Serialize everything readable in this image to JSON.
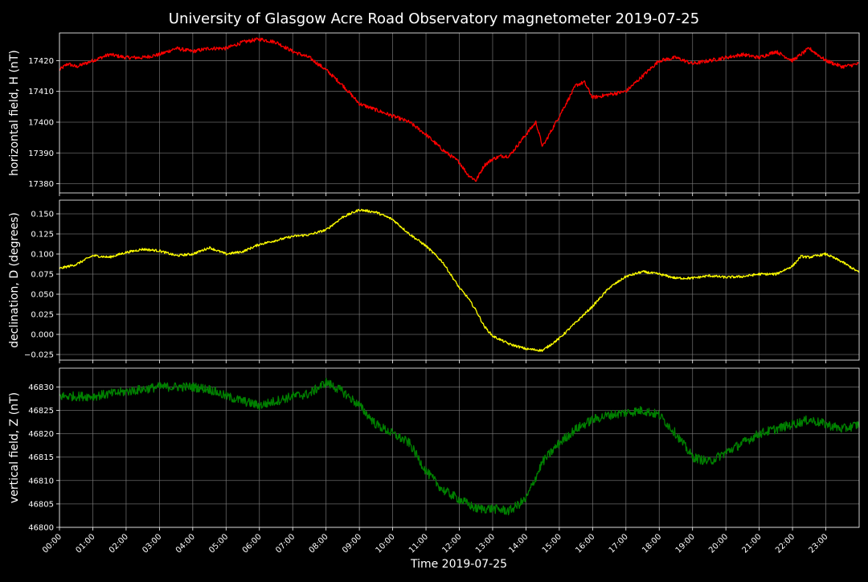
{
  "figure": {
    "title": "University of Glasgow Acre Road Observatory magnetometer 2019-07-25",
    "xlabel": "Time 2019-07-25",
    "background": "#000000",
    "foreground": "#ffffff",
    "grid_color": "#7f7f7f"
  },
  "chart_data": [
    {
      "type": "line",
      "ylabel": "horizontal field, H (nT)",
      "color": "#ff0000",
      "grid": true,
      "xlim": [
        0,
        24
      ],
      "ylim": [
        17377,
        17429
      ],
      "yticks": [
        17380,
        17390,
        17400,
        17410,
        17420
      ],
      "ytick_labels": [
        "17380",
        "17390",
        "17400",
        "17410",
        "17420"
      ],
      "noise": 0.6,
      "x": [
        0,
        0.25,
        0.5,
        1,
        1.5,
        2,
        2.5,
        3,
        3.5,
        4,
        4.5,
        5,
        5.5,
        6,
        6.5,
        7,
        7.5,
        8,
        8.5,
        9,
        9.5,
        10,
        10.5,
        11,
        11.5,
        12,
        12.25,
        12.5,
        12.75,
        13,
        13.25,
        13.5,
        14,
        14.3,
        14.5,
        14.75,
        15,
        15.5,
        15.75,
        16,
        16.5,
        17,
        17.5,
        18,
        18.5,
        19,
        19.5,
        20,
        20.5,
        21,
        21.5,
        22,
        22.5,
        23,
        23.5,
        24
      ],
      "y": [
        17417,
        17419,
        17418,
        17420,
        17422,
        17421,
        17421,
        17422,
        17424,
        17423,
        17424,
        17424,
        17426,
        17427,
        17426,
        17423,
        17421,
        17417,
        17412,
        17406,
        17404,
        17402,
        17400,
        17396,
        17391,
        17387,
        17383,
        17381,
        17386,
        17388,
        17389,
        17389,
        17396,
        17400,
        17392,
        17397,
        17402,
        17412,
        17413,
        17408,
        17409,
        17410,
        17415,
        17420,
        17421,
        17419,
        17420,
        17421,
        17422,
        17421,
        17423,
        17420,
        17424,
        17420,
        17418,
        17419
      ]
    },
    {
      "type": "line",
      "ylabel": "declination, D (degrees)",
      "color": "#ffff00",
      "grid": true,
      "xlim": [
        0,
        24
      ],
      "ylim": [
        -0.032,
        0.167
      ],
      "yticks": [
        -0.025,
        0,
        0.025,
        0.05,
        0.075,
        0.1,
        0.125,
        0.15
      ],
      "ytick_labels": [
        "−0.025",
        "0.000",
        "0.025",
        "0.050",
        "0.075",
        "0.100",
        "0.125",
        "0.150"
      ],
      "noise": 0.0015,
      "x": [
        0,
        0.5,
        1,
        1.5,
        2,
        2.5,
        3,
        3.5,
        4,
        4.5,
        5,
        5.5,
        6,
        6.5,
        7,
        7.5,
        8,
        8.5,
        9,
        9.5,
        10,
        10.5,
        11,
        11.5,
        12,
        12.25,
        12.5,
        12.75,
        13,
        13.5,
        14,
        14.5,
        15,
        15.5,
        16,
        16.5,
        17,
        17.5,
        18,
        18.5,
        19,
        19.5,
        20,
        20.5,
        21,
        21.5,
        22,
        22.25,
        22.5,
        23,
        23.5,
        24
      ],
      "y": [
        0.082,
        0.087,
        0.098,
        0.096,
        0.102,
        0.106,
        0.104,
        0.098,
        0.1,
        0.108,
        0.1,
        0.103,
        0.112,
        0.117,
        0.122,
        0.124,
        0.13,
        0.146,
        0.155,
        0.152,
        0.143,
        0.125,
        0.11,
        0.09,
        0.058,
        0.046,
        0.03,
        0.01,
        -0.002,
        -0.012,
        -0.018,
        -0.02,
        -0.005,
        0.015,
        0.035,
        0.058,
        0.072,
        0.078,
        0.075,
        0.07,
        0.07,
        0.073,
        0.071,
        0.072,
        0.075,
        0.075,
        0.085,
        0.097,
        0.096,
        0.1,
        0.09,
        0.077
      ]
    },
    {
      "type": "line",
      "ylabel": "vertical field, Z (nT)",
      "color": "#008000",
      "grid": true,
      "xlim": [
        0,
        24
      ],
      "ylim": [
        46800,
        46834
      ],
      "yticks": [
        46800,
        46805,
        46810,
        46815,
        46820,
        46825,
        46830
      ],
      "ytick_labels": [
        "46800",
        "46805",
        "46810",
        "46815",
        "46820",
        "46825",
        "46830"
      ],
      "noise": 1.0,
      "x": [
        0,
        0.5,
        1,
        1.5,
        2,
        2.5,
        3,
        3.5,
        4,
        4.5,
        5,
        5.5,
        6,
        6.5,
        7,
        7.5,
        8,
        8.5,
        9,
        9.5,
        10,
        10.5,
        11,
        11.5,
        12,
        12.5,
        13,
        13.5,
        14,
        14.5,
        15,
        15.5,
        16,
        16.5,
        17,
        17.5,
        18,
        18.25,
        18.5,
        19,
        19.5,
        20,
        20.5,
        21,
        21.5,
        22,
        22.5,
        23,
        23.5,
        24
      ],
      "y": [
        46828,
        46828,
        46828,
        46828.5,
        46829,
        46829.5,
        46830,
        46830,
        46830,
        46829.5,
        46828,
        46827,
        46826,
        46827,
        46828,
        46828.5,
        46831,
        46829,
        46826,
        46822,
        46820,
        46818,
        46812,
        46808,
        46806,
        46804,
        46804,
        46803.5,
        46806,
        46814,
        46818,
        46821,
        46823,
        46824,
        46824.5,
        46825,
        46824,
        46822,
        46820,
        46815,
        46814,
        46816,
        46818,
        46820,
        46821,
        46822,
        46823,
        46822,
        46821,
        46822
      ]
    }
  ],
  "x_axis": {
    "ticks": [
      0,
      1,
      2,
      3,
      4,
      5,
      6,
      7,
      8,
      9,
      10,
      11,
      12,
      13,
      14,
      15,
      16,
      17,
      18,
      19,
      20,
      21,
      22,
      23
    ],
    "tick_labels": [
      "00:00",
      "01:00",
      "02:00",
      "03:00",
      "04:00",
      "05:00",
      "06:00",
      "07:00",
      "08:00",
      "09:00",
      "10:00",
      "11:00",
      "12:00",
      "13:00",
      "14:00",
      "15:00",
      "16:00",
      "17:00",
      "18:00",
      "19:00",
      "20:00",
      "21:00",
      "22:00",
      "23:00"
    ]
  }
}
